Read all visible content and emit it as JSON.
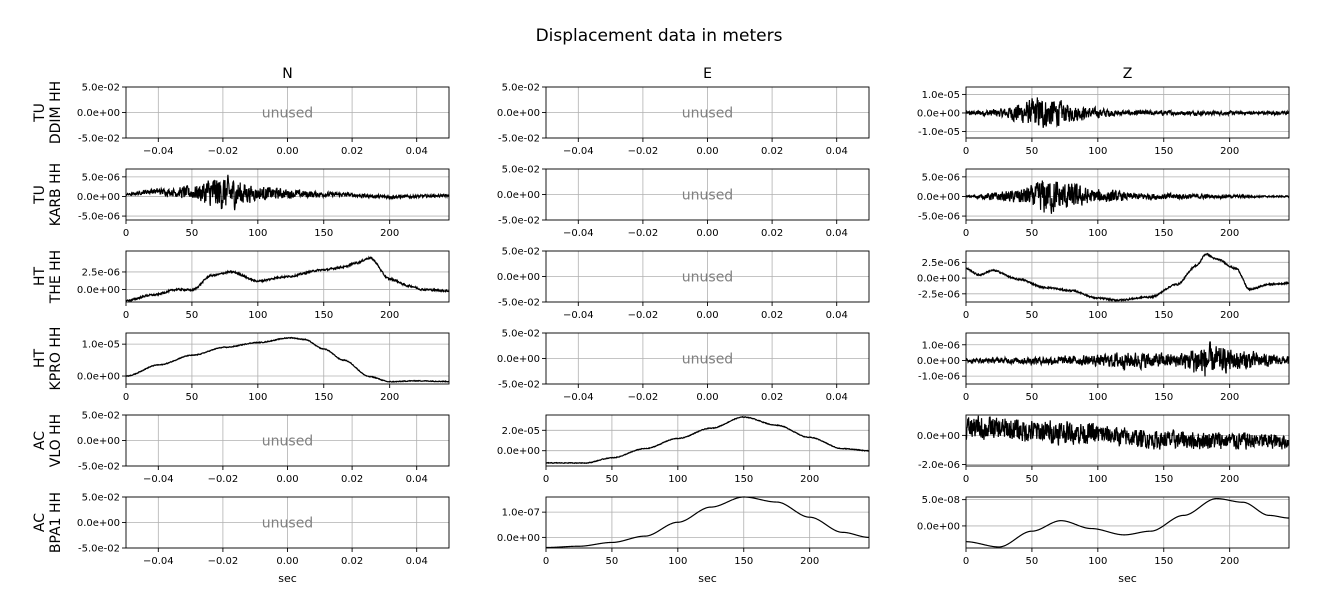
{
  "title": "Displacement data in meters",
  "colors": {
    "trace": "#000000",
    "grid": "#b0b0b0",
    "unused_text": "#808080",
    "axes": "#000000"
  },
  "chart_data": {
    "type": "line",
    "title": "Displacement data in meters",
    "column_titles": [
      "N",
      "E",
      "Z"
    ],
    "row_labels": [
      {
        "network": "TU",
        "station": "DDIM HH"
      },
      {
        "network": "TU",
        "station": "KARB HH"
      },
      {
        "network": "HT",
        "station": "THE HH"
      },
      {
        "network": "HT",
        "station": "KPRO HH"
      },
      {
        "network": "AC",
        "station": "VLO HH"
      },
      {
        "network": "AC",
        "station": "BPA1 HH"
      }
    ],
    "xlabel": "sec",
    "grid": true,
    "unused_label": "unused",
    "unused_axes": {
      "xlim": [
        -0.05,
        0.05
      ],
      "xticks": [
        -0.04,
        -0.02,
        0.0,
        0.02,
        0.04
      ],
      "xtick_labels": [
        "−0.04",
        "−0.02",
        "0.00",
        "0.02",
        "0.04"
      ],
      "ylim": [
        -0.05,
        0.05
      ],
      "yticks": [
        -0.05,
        0.0,
        0.05
      ],
      "ytick_labels": [
        "-5.0e-02",
        "0.0e+00",
        "5.0e-02"
      ]
    },
    "time_axes": {
      "xlim": [
        0,
        245
      ],
      "xticks": [
        0,
        50,
        100,
        150,
        200
      ],
      "xtick_labels": [
        "0",
        "50",
        "100",
        "150",
        "200"
      ]
    },
    "panels": [
      {
        "row": 0,
        "col": 0,
        "unused": true
      },
      {
        "row": 0,
        "col": 1,
        "unused": true
      },
      {
        "row": 0,
        "col": 2,
        "unused": false,
        "ylim": [
          -1.35e-05,
          1.4e-05
        ],
        "yticks": [
          -1e-05,
          0,
          1e-05
        ],
        "ytick_labels": [
          "-1.0e-05",
          "0.0e+00",
          "1.0e-05"
        ],
        "noise_bursts": [
          [
            0,
            1e-06
          ],
          [
            25,
            2.5e-06
          ],
          [
            45,
            7e-06
          ],
          [
            55,
            1e-05
          ],
          [
            65,
            9e-06
          ],
          [
            80,
            5e-06
          ],
          [
            100,
            3e-06
          ],
          [
            120,
            1.5e-06
          ],
          [
            245,
            1e-06
          ]
        ],
        "trend": [
          [
            0,
            0
          ],
          [
            245,
            0
          ]
        ]
      },
      {
        "row": 1,
        "col": 0,
        "unused": false,
        "ylim": [
          -6e-06,
          7e-06
        ],
        "yticks": [
          -5e-06,
          0,
          5e-06
        ],
        "ytick_labels": [
          "-5.0e-06",
          "0.0e+00",
          "5.0e-06"
        ],
        "noise_bursts": [
          [
            0,
            3e-07
          ],
          [
            30,
            1e-06
          ],
          [
            50,
            2e-06
          ],
          [
            70,
            5e-06
          ],
          [
            80,
            4.5e-06
          ],
          [
            100,
            2e-06
          ],
          [
            130,
            1.2e-06
          ],
          [
            160,
            6e-07
          ],
          [
            245,
            4e-07
          ]
        ],
        "trend": [
          [
            0,
            5e-07
          ],
          [
            20,
            1.3e-06
          ],
          [
            45,
            1e-06
          ],
          [
            100,
            8e-07
          ],
          [
            160,
            5e-07
          ],
          [
            200,
            -1e-07
          ],
          [
            245,
            2e-07
          ]
        ]
      },
      {
        "row": 1,
        "col": 1,
        "unused": true
      },
      {
        "row": 1,
        "col": 2,
        "unused": false,
        "ylim": [
          -6e-06,
          7e-06
        ],
        "yticks": [
          -5e-06,
          0,
          5e-06
        ],
        "ytick_labels": [
          "-5.0e-06",
          "0.0e+00",
          "5.0e-06"
        ],
        "noise_bursts": [
          [
            0,
            2e-07
          ],
          [
            30,
            1.5e-06
          ],
          [
            50,
            3e-06
          ],
          [
            60,
            5.5e-06
          ],
          [
            75,
            4e-06
          ],
          [
            100,
            2e-06
          ],
          [
            130,
            1e-06
          ],
          [
            245,
            2e-07
          ]
        ],
        "trend": [
          [
            0,
            0
          ],
          [
            245,
            0
          ]
        ]
      },
      {
        "row": 2,
        "col": 0,
        "unused": false,
        "ylim": [
          -1.8e-06,
          5.5e-06
        ],
        "yticks": [
          0,
          2.5e-06
        ],
        "ytick_labels": [
          "0.0e+00",
          "2.5e-06"
        ],
        "noise_bursts": [
          [
            0,
            1.5e-07
          ],
          [
            245,
            1.5e-07
          ]
        ],
        "trend": [
          [
            0,
            -1.6e-06
          ],
          [
            20,
            -8e-07
          ],
          [
            40,
            0
          ],
          [
            50,
            -1e-07
          ],
          [
            65,
            2e-06
          ],
          [
            80,
            2.5e-06
          ],
          [
            100,
            1.2e-06
          ],
          [
            120,
            1.8e-06
          ],
          [
            150,
            2.8e-06
          ],
          [
            165,
            3.2e-06
          ],
          [
            175,
            3.8e-06
          ],
          [
            185,
            4.5e-06
          ],
          [
            200,
            1.5e-06
          ],
          [
            215,
            5e-07
          ],
          [
            225,
            0
          ],
          [
            245,
            -2e-07
          ]
        ]
      },
      {
        "row": 2,
        "col": 1,
        "unused": true
      },
      {
        "row": 2,
        "col": 2,
        "unused": false,
        "ylim": [
          -3.8e-06,
          4.3e-06
        ],
        "yticks": [
          -2.5e-06,
          0,
          2.5e-06
        ],
        "ytick_labels": [
          "-2.5e-06",
          "0.0e+00",
          "2.5e-06"
        ],
        "noise_bursts": [
          [
            0,
            1.5e-07
          ],
          [
            245,
            1.5e-07
          ]
        ],
        "trend": [
          [
            0,
            1.5e-06
          ],
          [
            10,
            5e-07
          ],
          [
            20,
            1.2e-06
          ],
          [
            40,
            -2e-07
          ],
          [
            60,
            -1.5e-06
          ],
          [
            80,
            -2e-06
          ],
          [
            100,
            -3.2e-06
          ],
          [
            115,
            -3.5e-06
          ],
          [
            140,
            -3e-06
          ],
          [
            160,
            -1e-06
          ],
          [
            175,
            2e-06
          ],
          [
            182,
            3.8e-06
          ],
          [
            190,
            3e-06
          ],
          [
            205,
            1.5e-06
          ],
          [
            215,
            -1.8e-06
          ],
          [
            230,
            -1e-06
          ],
          [
            245,
            -8e-07
          ]
        ]
      },
      {
        "row": 3,
        "col": 0,
        "unused": false,
        "ylim": [
          -2.5e-06,
          1.35e-05
        ],
        "yticks": [
          0,
          1e-05
        ],
        "ytick_labels": [
          "0.0e+00",
          "1.0e-05"
        ],
        "noise_bursts": [
          [
            0,
            1.5e-07
          ],
          [
            245,
            1.5e-07
          ]
        ],
        "trend": [
          [
            0,
            0
          ],
          [
            25,
            3.5e-06
          ],
          [
            50,
            6.5e-06
          ],
          [
            75,
            9e-06
          ],
          [
            100,
            1.05e-05
          ],
          [
            125,
            1.2e-05
          ],
          [
            135,
            1.15e-05
          ],
          [
            150,
            8.5e-06
          ],
          [
            165,
            5e-06
          ],
          [
            185,
            -2e-07
          ],
          [
            200,
            -1.8e-06
          ],
          [
            220,
            -1.5e-06
          ],
          [
            245,
            -1.7e-06
          ]
        ]
      },
      {
        "row": 3,
        "col": 1,
        "unused": true
      },
      {
        "row": 3,
        "col": 2,
        "unused": false,
        "ylim": [
          -1.5e-06,
          1.75e-06
        ],
        "yticks": [
          -1e-06,
          0,
          1e-06
        ],
        "ytick_labels": [
          "-1.0e-06",
          "0.0e+00",
          "1.0e-06"
        ],
        "noise_bursts": [
          [
            0,
            1.5e-07
          ],
          [
            70,
            3e-07
          ],
          [
            100,
            4e-07
          ],
          [
            120,
            6e-07
          ],
          [
            160,
            5e-07
          ],
          [
            180,
            1.2e-06
          ],
          [
            200,
            8e-07
          ],
          [
            245,
            3e-07
          ]
        ],
        "trend": [
          [
            0,
            0
          ],
          [
            245,
            0
          ]
        ]
      },
      {
        "row": 4,
        "col": 0,
        "unused": true
      },
      {
        "row": 4,
        "col": 1,
        "unused": false,
        "ylim": [
          -1.5e-05,
          3.5e-05
        ],
        "yticks": [
          0,
          2e-05
        ],
        "ytick_labels": [
          "0.0e+00",
          "2.0e-05"
        ],
        "noise_bursts": [
          [
            0,
            4e-07
          ],
          [
            245,
            4e-07
          ]
        ],
        "trend": [
          [
            0,
            -1.2e-05
          ],
          [
            30,
            -1.2e-05
          ],
          [
            50,
            -7e-06
          ],
          [
            75,
            2e-06
          ],
          [
            100,
            1.2e-05
          ],
          [
            125,
            2.2e-05
          ],
          [
            150,
            3.3e-05
          ],
          [
            175,
            2.5e-05
          ],
          [
            200,
            1.3e-05
          ],
          [
            225,
            2e-06
          ],
          [
            245,
            0
          ]
        ]
      },
      {
        "row": 4,
        "col": 2,
        "unused": false,
        "ylim": [
          -2.1e-06,
          1.4e-06
        ],
        "yticks": [
          -2e-06,
          0
        ],
        "ytick_labels": [
          "-2.0e-06",
          "0.0e+00"
        ],
        "noise_bursts": [
          [
            0,
            9e-07
          ],
          [
            60,
            9e-07
          ],
          [
            140,
            7e-07
          ],
          [
            190,
            7e-07
          ],
          [
            245,
            6e-07
          ]
        ],
        "trend": [
          [
            0,
            5e-07
          ],
          [
            80,
            2e-07
          ],
          [
            150,
            -3e-07
          ],
          [
            245,
            -4e-07
          ]
        ]
      },
      {
        "row": 5,
        "col": 0,
        "unused": true
      },
      {
        "row": 5,
        "col": 1,
        "unused": false,
        "ylim": [
          -4.2e-08,
          1.6e-07
        ],
        "yticks": [
          0,
          1e-07
        ],
        "ytick_labels": [
          "0.0e+00",
          "1.0e-07"
        ],
        "noise_bursts": [
          [
            0,
            0
          ],
          [
            245,
            0
          ]
        ],
        "trend": [
          [
            0,
            -4e-08
          ],
          [
            25,
            -3.5e-08
          ],
          [
            50,
            -2e-08
          ],
          [
            75,
            5e-09
          ],
          [
            100,
            6e-08
          ],
          [
            125,
            1.2e-07
          ],
          [
            150,
            1.6e-07
          ],
          [
            175,
            1.4e-07
          ],
          [
            200,
            8e-08
          ],
          [
            225,
            2e-08
          ],
          [
            245,
            0
          ]
        ]
      },
      {
        "row": 5,
        "col": 2,
        "unused": false,
        "ylim": [
          -4.2e-08,
          5.5e-08
        ],
        "yticks": [
          0,
          5e-08
        ],
        "ytick_labels": [
          "0.0e+00",
          "5.0e-08"
        ],
        "noise_bursts": [
          [
            0,
            0
          ],
          [
            245,
            0
          ]
        ],
        "trend": [
          [
            0,
            -3e-08
          ],
          [
            25,
            -4e-08
          ],
          [
            50,
            -1e-08
          ],
          [
            72,
            1e-08
          ],
          [
            95,
            -5e-09
          ],
          [
            120,
            -1.7e-08
          ],
          [
            140,
            -1e-08
          ],
          [
            165,
            2e-08
          ],
          [
            190,
            5.2e-08
          ],
          [
            210,
            4.5e-08
          ],
          [
            230,
            2e-08
          ],
          [
            245,
            1.5e-08
          ]
        ]
      }
    ]
  }
}
